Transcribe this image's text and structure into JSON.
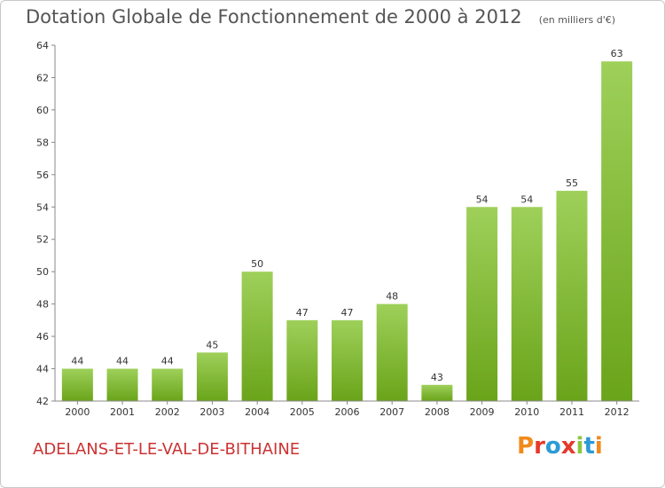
{
  "header": {
    "title": "Dotation Globale de Fonctionnement de 2000 à 2012",
    "subtitle": "(en milliers d'€)"
  },
  "footer": {
    "commune": "ADELANS-ET-LE-VAL-DE-BITHAINE",
    "logo": "Proxiti"
  },
  "colors": {
    "bar_light": "#9ed05a",
    "bar_dark": "#6aa41a",
    "commune_text": "#cc3333",
    "logo_letters": [
      "#f08a1c",
      "#e43a2c",
      "#2b9bd6",
      "#e43a2c",
      "#8cc63f",
      "#2b9bd6",
      "#f08a1c"
    ]
  },
  "chart_data": {
    "type": "bar",
    "categories": [
      "2000",
      "2001",
      "2002",
      "2003",
      "2004",
      "2005",
      "2006",
      "2007",
      "2008",
      "2009",
      "2010",
      "2011",
      "2012"
    ],
    "values": [
      44,
      44,
      44,
      45,
      50,
      47,
      47,
      48,
      43,
      54,
      54,
      55,
      63
    ],
    "title": "Dotation Globale de Fonctionnement de 2000 à 2012",
    "ylabel": "",
    "xlabel": "",
    "ylim": [
      42,
      64
    ],
    "yticks": [
      42,
      44,
      46,
      48,
      50,
      52,
      54,
      56,
      58,
      60,
      62,
      64
    ],
    "grid": false,
    "legend": "none"
  }
}
